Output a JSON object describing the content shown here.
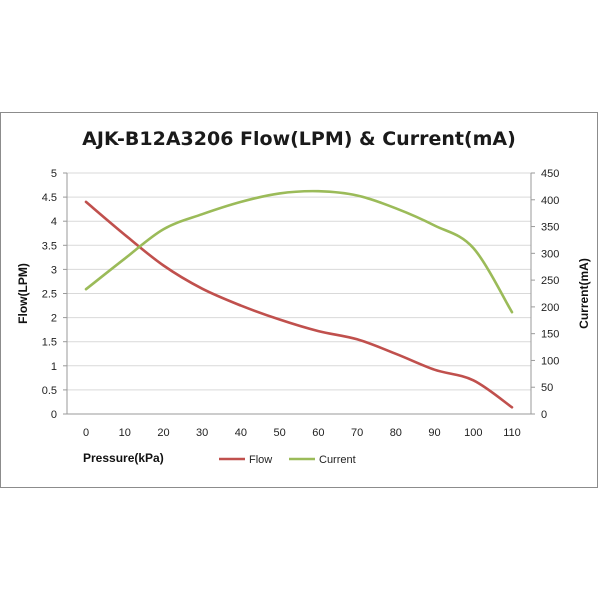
{
  "chart_data": {
    "type": "line",
    "title": "AJK-B12A3206 Flow(LPM) & Current(mA)",
    "xlabel": "Pressure(kPa)",
    "ylabel_left": "Flow(LPM)",
    "ylabel_right": "Current(mA)",
    "x_ticks": [
      "0",
      "10",
      "20",
      "30",
      "40",
      "50",
      "60",
      "70",
      "80",
      "90",
      "100",
      "110"
    ],
    "y_left_ticks": [
      "0",
      "0.5",
      "1",
      "1.5",
      "2",
      "2.5",
      "3",
      "3.5",
      "4",
      "4.5",
      "5"
    ],
    "y_right_ticks": [
      "0",
      "50",
      "100",
      "150",
      "200",
      "250",
      "300",
      "350",
      "400",
      "450"
    ],
    "xlim": [
      0,
      110
    ],
    "ylim_left": [
      0,
      5
    ],
    "ylim_right": [
      0,
      450
    ],
    "grid": "horizontal",
    "legend_position": "bottom",
    "series": [
      {
        "name": "Flow",
        "axis": "left",
        "color": "#c0504d",
        "x": [
          0,
          10,
          20,
          30,
          40,
          50,
          60,
          70,
          80,
          90,
          100,
          110
        ],
        "values": [
          4.4,
          3.72,
          3.08,
          2.6,
          2.25,
          1.96,
          1.72,
          1.55,
          1.25,
          0.92,
          0.7,
          0.14
        ]
      },
      {
        "name": "Current",
        "axis": "right",
        "color": "#9bbb59",
        "x": [
          0,
          10,
          20,
          30,
          40,
          50,
          60,
          70,
          80,
          90,
          100,
          110
        ],
        "values": [
          233,
          290,
          345,
          373,
          396,
          412,
          416,
          408,
          384,
          352,
          310,
          190
        ]
      }
    ]
  }
}
